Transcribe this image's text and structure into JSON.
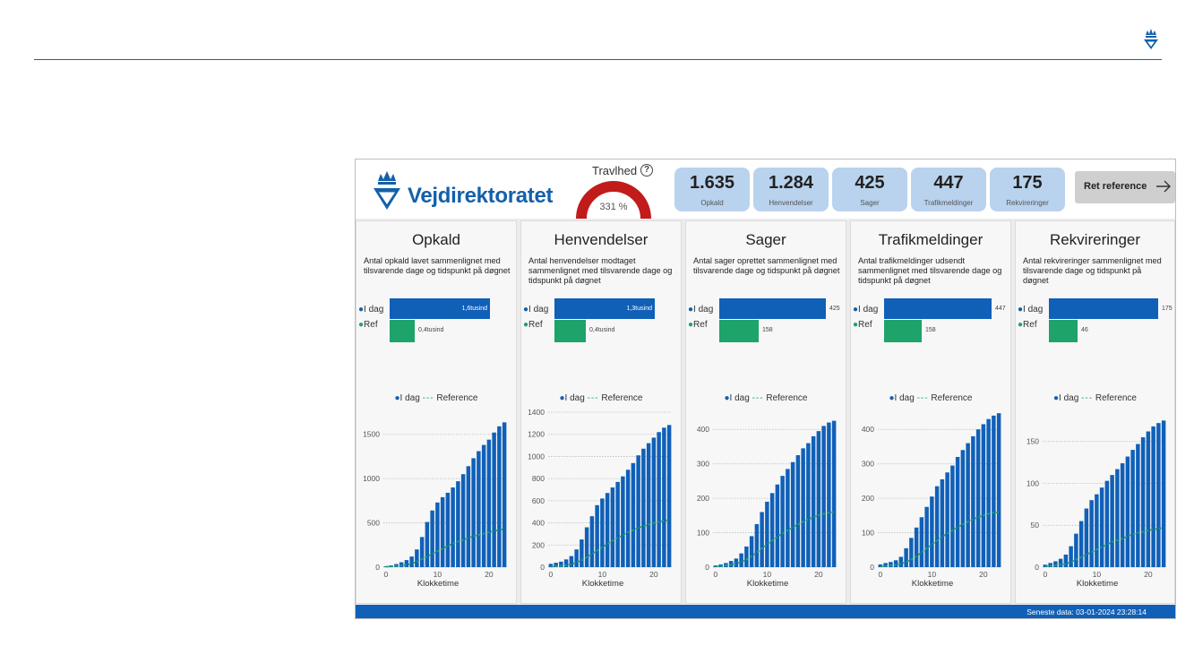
{
  "dashboard": {
    "brand": "Vejdirektoratet",
    "busy": {
      "title": "Travlhed",
      "value_label": "331 %",
      "percent": 331
    },
    "kpis": [
      {
        "value": "1.635",
        "label": "Opkald"
      },
      {
        "value": "1.284",
        "label": "Henvendelser"
      },
      {
        "value": "425",
        "label": "Sager"
      },
      {
        "value": "447",
        "label": "Trafikmeldinger"
      },
      {
        "value": "175",
        "label": "Rekvireringer"
      }
    ],
    "ref_button": "Ret reference",
    "footer": "Seneste data:  03-01-2024 23:28:14",
    "colors": {
      "primary": "#1060b8",
      "reference": "#1ea36a",
      "kpi_bg": "#b9d2ed",
      "gauge": "#c21b1b"
    }
  },
  "panels": [
    {
      "title": "Opkald",
      "desc": "Antal opkald lavet sammenlignet med tilsvarende dage og tidspunkt på døgnet",
      "today_label": "I dag",
      "ref_label": "Ref",
      "today_text": "1,6tusind",
      "ref_text": "0,4tusind",
      "legend_today": "I dag",
      "legend_ref": "Reference",
      "xlabel": "Klokketime"
    },
    {
      "title": "Henvendelser",
      "desc": "Antal henvendelser modtaget sammenlignet med tilsvarende dage og tidspunkt på døgnet",
      "today_label": "I dag",
      "ref_label": "Ref",
      "today_text": "1,3tusind",
      "ref_text": "0,4tusind",
      "legend_today": "I dag",
      "legend_ref": "Reference",
      "xlabel": "Klokketime"
    },
    {
      "title": "Sager",
      "desc": "Antal sager oprettet sammenlignet med tilsvarende dage og tidspunkt på døgnet",
      "today_label": "I dag",
      "ref_label": "Ref",
      "today_text": "425",
      "ref_text": "158",
      "legend_today": "I dag",
      "legend_ref": "Reference",
      "xlabel": "Klokketime"
    },
    {
      "title": "Trafikmeldinger",
      "desc": "Antal trafikmeldinger udsendt sammenlignet med tilsvarende dage og tidspunkt på døgnet",
      "today_label": "I dag",
      "ref_label": "Ref",
      "today_text": "447",
      "ref_text": "158",
      "legend_today": "I dag",
      "legend_ref": "Reference",
      "xlabel": "Klokketime"
    },
    {
      "title": "Rekvireringer",
      "desc": "Antal rekvireringer sammenlignet med tilsvarende dage og tidspunkt på døgnet",
      "today_label": "I dag",
      "ref_label": "Ref",
      "today_text": "175",
      "ref_text": "46",
      "legend_today": "I dag",
      "legend_ref": "Reference",
      "xlabel": "Klokketime"
    }
  ],
  "chart_data": [
    {
      "type": "bar",
      "title": "Opkald",
      "xlabel": "Klokketime",
      "ylabel": "",
      "xticks": [
        0,
        10,
        20
      ],
      "yticks": [
        0,
        500,
        1000,
        1500
      ],
      "ylim": [
        0,
        1750
      ],
      "grid": true,
      "legend": "top-center",
      "bar_today": 1635,
      "bar_ref": 400,
      "x": [
        0,
        1,
        2,
        3,
        4,
        5,
        6,
        7,
        8,
        9,
        10,
        11,
        12,
        13,
        14,
        15,
        16,
        17,
        18,
        19,
        20,
        21,
        22,
        23
      ],
      "series": [
        {
          "name": "I dag",
          "kind": "bar",
          "values": [
            10,
            20,
            35,
            55,
            80,
            120,
            200,
            340,
            510,
            640,
            730,
            790,
            840,
            900,
            970,
            1050,
            1140,
            1230,
            1310,
            1380,
            1440,
            1520,
            1590,
            1635
          ]
        },
        {
          "name": "Reference",
          "kind": "line",
          "values": [
            5,
            8,
            12,
            18,
            25,
            40,
            60,
            90,
            120,
            150,
            180,
            210,
            240,
            265,
            290,
            310,
            330,
            350,
            365,
            380,
            395,
            410,
            420,
            430
          ]
        }
      ]
    },
    {
      "type": "bar",
      "title": "Henvendelser",
      "xlabel": "Klokketime",
      "ylabel": "",
      "xticks": [
        0,
        10,
        20
      ],
      "yticks": [
        0,
        200,
        400,
        600,
        800,
        1000,
        1200,
        1400
      ],
      "ylim": [
        0,
        1400
      ],
      "grid": true,
      "legend": "top-center",
      "bar_today": 1284,
      "bar_ref": 400,
      "x": [
        0,
        1,
        2,
        3,
        4,
        5,
        6,
        7,
        8,
        9,
        10,
        11,
        12,
        13,
        14,
        15,
        16,
        17,
        18,
        19,
        20,
        21,
        22,
        23
      ],
      "series": [
        {
          "name": "I dag",
          "kind": "bar",
          "values": [
            30,
            40,
            50,
            70,
            100,
            160,
            250,
            360,
            460,
            560,
            620,
            670,
            720,
            770,
            820,
            880,
            940,
            1010,
            1070,
            1120,
            1170,
            1220,
            1260,
            1284
          ]
        },
        {
          "name": "Reference",
          "kind": "line",
          "values": [
            5,
            8,
            12,
            18,
            28,
            42,
            62,
            90,
            120,
            150,
            180,
            210,
            240,
            265,
            290,
            315,
            335,
            355,
            370,
            385,
            400,
            410,
            420,
            425
          ]
        }
      ]
    },
    {
      "type": "bar",
      "title": "Sager",
      "xlabel": "Klokketime",
      "ylabel": "",
      "xticks": [
        0,
        10,
        20
      ],
      "yticks": [
        0,
        100,
        200,
        300,
        400
      ],
      "ylim": [
        0,
        450
      ],
      "grid": true,
      "legend": "top-center",
      "bar_today": 425,
      "bar_ref": 158,
      "x": [
        0,
        1,
        2,
        3,
        4,
        5,
        6,
        7,
        8,
        9,
        10,
        11,
        12,
        13,
        14,
        15,
        16,
        17,
        18,
        19,
        20,
        21,
        22,
        23
      ],
      "series": [
        {
          "name": "I dag",
          "kind": "bar",
          "values": [
            5,
            8,
            12,
            18,
            25,
            40,
            60,
            90,
            125,
            160,
            190,
            215,
            240,
            265,
            285,
            305,
            325,
            345,
            360,
            380,
            395,
            410,
            420,
            425
          ]
        },
        {
          "name": "Reference",
          "kind": "line",
          "values": [
            2,
            3,
            5,
            7,
            10,
            15,
            22,
            32,
            43,
            55,
            66,
            77,
            88,
            98,
            107,
            116,
            124,
            132,
            139,
            145,
            150,
            155,
            158,
            160
          ]
        }
      ]
    },
    {
      "type": "bar",
      "title": "Trafikmeldinger",
      "xlabel": "Klokketime",
      "ylabel": "",
      "xticks": [
        0,
        10,
        20
      ],
      "yticks": [
        0,
        100,
        200,
        300,
        400
      ],
      "ylim": [
        0,
        450
      ],
      "grid": true,
      "legend": "top-center",
      "bar_today": 447,
      "bar_ref": 158,
      "x": [
        0,
        1,
        2,
        3,
        4,
        5,
        6,
        7,
        8,
        9,
        10,
        11,
        12,
        13,
        14,
        15,
        16,
        17,
        18,
        19,
        20,
        21,
        22,
        23
      ],
      "series": [
        {
          "name": "I dag",
          "kind": "bar",
          "values": [
            8,
            12,
            15,
            20,
            30,
            55,
            85,
            115,
            145,
            175,
            205,
            235,
            255,
            275,
            295,
            320,
            340,
            360,
            380,
            400,
            415,
            430,
            440,
            447
          ]
        },
        {
          "name": "Reference",
          "kind": "line",
          "values": [
            2,
            3,
            5,
            7,
            10,
            15,
            22,
            32,
            43,
            55,
            66,
            77,
            88,
            98,
            107,
            116,
            124,
            132,
            139,
            145,
            150,
            155,
            158,
            160
          ]
        }
      ]
    },
    {
      "type": "bar",
      "title": "Rekvireringer",
      "xlabel": "Klokketime",
      "ylabel": "",
      "xticks": [
        0,
        10,
        20
      ],
      "yticks": [
        0,
        50,
        100,
        150
      ],
      "ylim": [
        0,
        185
      ],
      "grid": true,
      "legend": "top-center",
      "bar_today": 175,
      "bar_ref": 46,
      "x": [
        0,
        1,
        2,
        3,
        4,
        5,
        6,
        7,
        8,
        9,
        10,
        11,
        12,
        13,
        14,
        15,
        16,
        17,
        18,
        19,
        20,
        21,
        22,
        23
      ],
      "series": [
        {
          "name": "I dag",
          "kind": "bar",
          "values": [
            3,
            5,
            7,
            10,
            15,
            25,
            40,
            55,
            70,
            80,
            87,
            95,
            103,
            110,
            117,
            124,
            132,
            140,
            147,
            155,
            162,
            168,
            172,
            175
          ]
        },
        {
          "name": "Reference",
          "kind": "line",
          "values": [
            1,
            1.5,
            2,
            3,
            4,
            6,
            9,
            12,
            15,
            18,
            21,
            24,
            27,
            30,
            32,
            34,
            37,
            39,
            41,
            42,
            44,
            45,
            46,
            47
          ]
        }
      ]
    }
  ]
}
